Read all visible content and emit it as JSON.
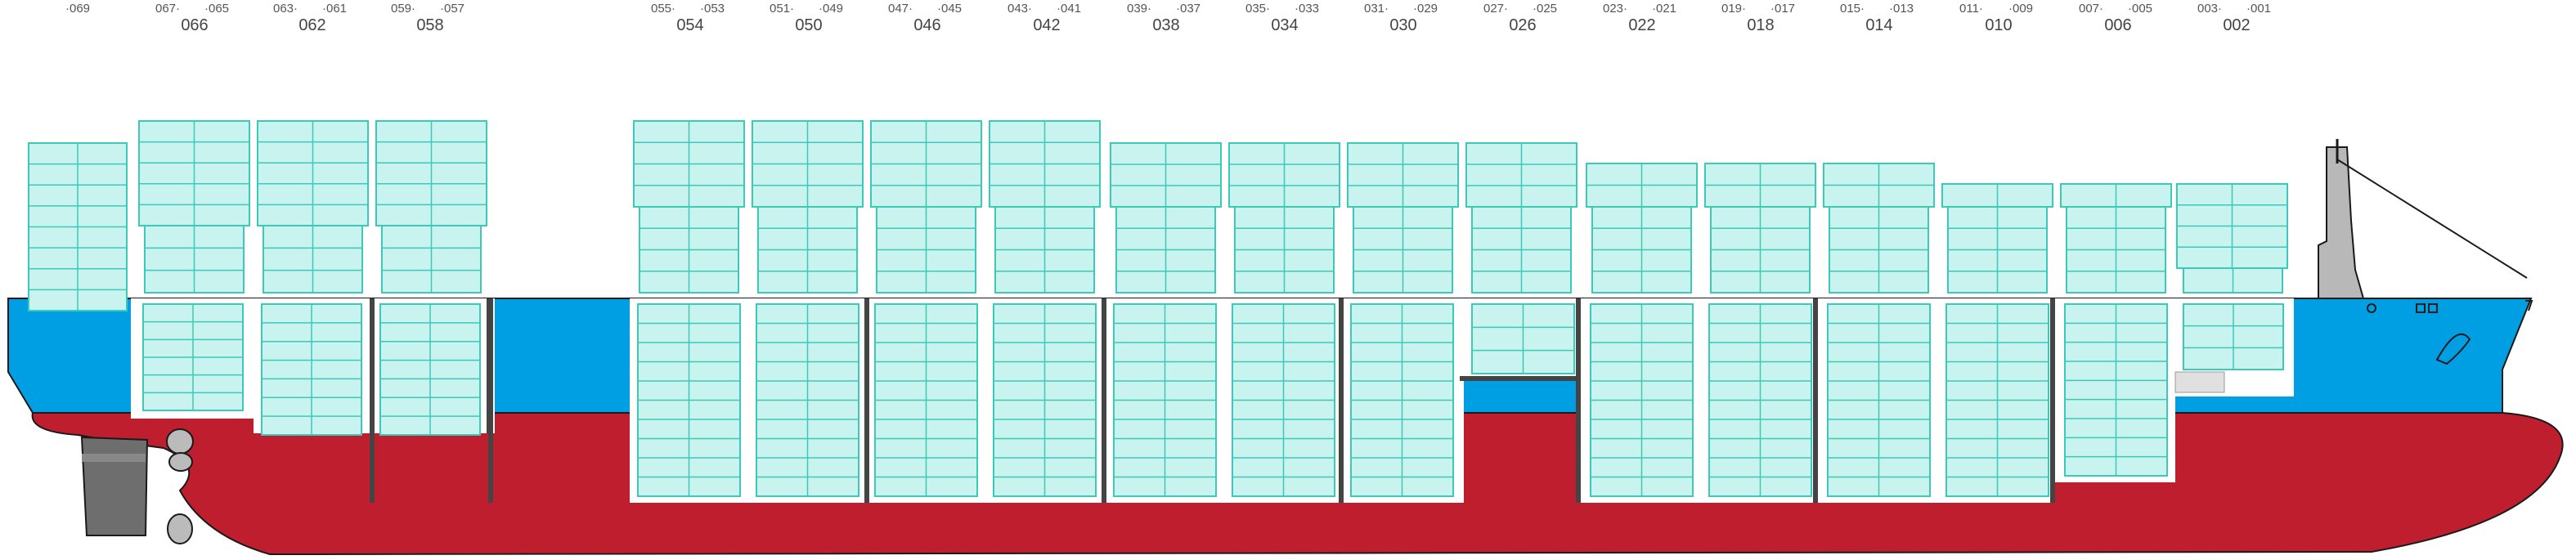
{
  "diagram": {
    "colors": {
      "container_fill": "#c9f3ee",
      "container_stroke": "#3cc9b8",
      "hull_red": "#be1e2d",
      "hull_blue": "#009fe3",
      "hatch_white": "#ffffff",
      "hatch_dark": "#444444",
      "outline": "#1a1a1a",
      "machinery_grey": "#b8b8b8",
      "rudder_grey": "#6e6e6e"
    },
    "bays": [
      {
        "label": "",
        "sub_left": "069",
        "sub_right": ""
      },
      {
        "label": "066",
        "sub_left": "067",
        "sub_right": "065"
      },
      {
        "label": "062",
        "sub_left": "063",
        "sub_right": "061"
      },
      {
        "label": "058",
        "sub_left": "059",
        "sub_right": "057"
      },
      {
        "label": "054",
        "sub_left": "055",
        "sub_right": "053"
      },
      {
        "label": "050",
        "sub_left": "051",
        "sub_right": "049"
      },
      {
        "label": "046",
        "sub_left": "047",
        "sub_right": "045"
      },
      {
        "label": "042",
        "sub_left": "043",
        "sub_right": "041"
      },
      {
        "label": "038",
        "sub_left": "039",
        "sub_right": "037"
      },
      {
        "label": "034",
        "sub_left": "035",
        "sub_right": "033"
      },
      {
        "label": "030",
        "sub_left": "031",
        "sub_right": "029"
      },
      {
        "label": "026",
        "sub_left": "027",
        "sub_right": "025"
      },
      {
        "label": "022",
        "sub_left": "023",
        "sub_right": "021"
      },
      {
        "label": "018",
        "sub_left": "019",
        "sub_right": "017"
      },
      {
        "label": "014",
        "sub_left": "015",
        "sub_right": "013"
      },
      {
        "label": "010",
        "sub_left": "011",
        "sub_right": "009"
      },
      {
        "label": "006",
        "sub_left": "007",
        "sub_right": "005"
      },
      {
        "label": "002",
        "sub_left": "003",
        "sub_right": "001"
      }
    ]
  }
}
